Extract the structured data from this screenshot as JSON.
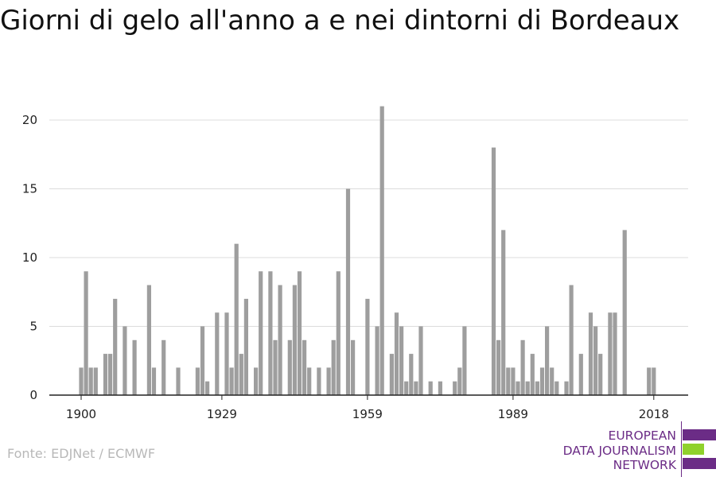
{
  "title": "Giorni di gelo all'anno a e nei dintorni di Bordeaux",
  "source": "Fonte: EDJNet / ECMWF",
  "logo": {
    "lines": [
      "EUROPEAN",
      "DATA JOURNALISM",
      "NETWORK"
    ],
    "colors": {
      "purple": "#6b2c86",
      "green": "#8fd12c"
    }
  },
  "chart_data": {
    "type": "bar",
    "title": "Giorni di gelo all'anno a e nei dintorni di Bordeaux",
    "xlabel": "",
    "ylabel": "",
    "x_ticks": [
      "1900",
      "1929",
      "1959",
      "1989",
      "2018"
    ],
    "y_ticks": [
      0,
      5,
      10,
      15,
      20
    ],
    "ylim": [
      0,
      21.5
    ],
    "xlim": [
      1900,
      2018
    ],
    "grid": true,
    "bar_color": "#9e9e9e",
    "x": [
      1900,
      1901,
      1902,
      1903,
      1904,
      1905,
      1906,
      1907,
      1908,
      1909,
      1910,
      1911,
      1912,
      1913,
      1914,
      1915,
      1916,
      1917,
      1918,
      1919,
      1920,
      1921,
      1922,
      1923,
      1924,
      1925,
      1926,
      1927,
      1928,
      1929,
      1930,
      1931,
      1932,
      1933,
      1934,
      1935,
      1936,
      1937,
      1938,
      1939,
      1940,
      1941,
      1942,
      1943,
      1944,
      1945,
      1946,
      1947,
      1948,
      1949,
      1950,
      1951,
      1952,
      1953,
      1954,
      1955,
      1956,
      1957,
      1958,
      1959,
      1960,
      1961,
      1962,
      1963,
      1964,
      1965,
      1966,
      1967,
      1968,
      1969,
      1970,
      1971,
      1972,
      1973,
      1974,
      1975,
      1976,
      1977,
      1978,
      1979,
      1980,
      1981,
      1982,
      1983,
      1984,
      1985,
      1986,
      1987,
      1988,
      1989,
      1990,
      1991,
      1992,
      1993,
      1994,
      1995,
      1996,
      1997,
      1998,
      1999,
      2000,
      2001,
      2002,
      2003,
      2004,
      2005,
      2006,
      2007,
      2008,
      2009,
      2010,
      2011,
      2012,
      2013,
      2014,
      2015,
      2016,
      2017,
      2018
    ],
    "values": [
      2,
      9,
      2,
      2,
      0,
      3,
      3,
      7,
      0,
      5,
      0,
      4,
      0,
      0,
      8,
      2,
      0,
      4,
      0,
      0,
      2,
      0,
      0,
      0,
      2,
      5,
      1,
      0,
      6,
      0,
      6,
      2,
      11,
      3,
      7,
      0,
      2,
      9,
      0,
      9,
      4,
      8,
      0,
      4,
      8,
      9,
      4,
      2,
      0,
      2,
      0,
      2,
      4,
      9,
      0,
      15,
      4,
      0,
      0,
      7,
      0,
      5,
      21,
      0,
      3,
      6,
      5,
      1,
      3,
      1,
      5,
      0,
      1,
      0,
      1,
      0,
      0,
      1,
      2,
      5,
      0,
      0,
      0,
      0,
      0,
      18,
      4,
      12,
      2,
      2,
      1,
      4,
      1,
      3,
      1,
      2,
      5,
      2,
      1,
      0,
      1,
      8,
      0,
      3,
      0,
      6,
      5,
      3,
      0,
      6,
      6,
      0,
      12,
      0,
      0,
      0,
      0,
      2,
      2
    ]
  }
}
